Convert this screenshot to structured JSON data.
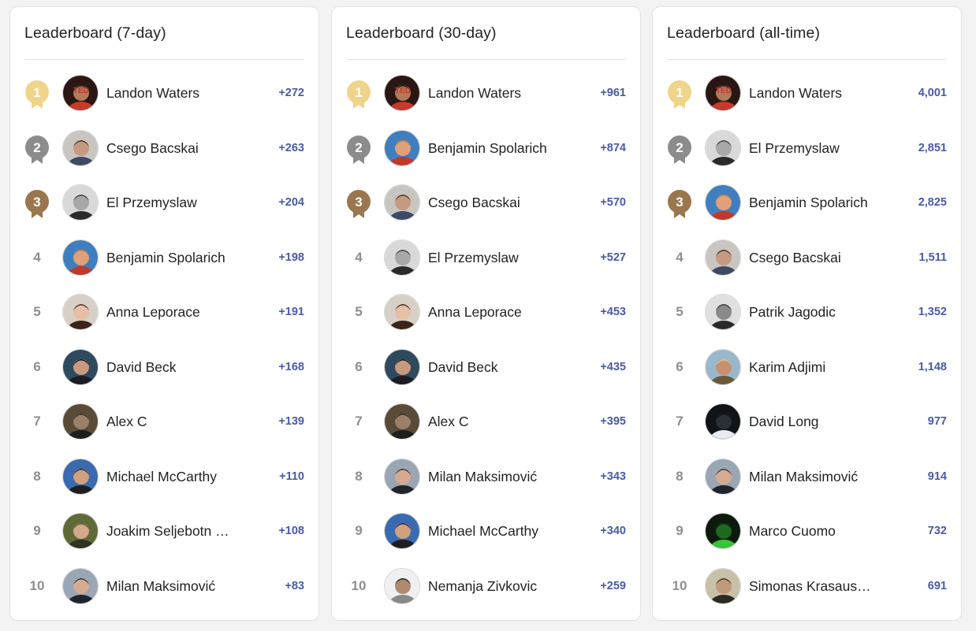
{
  "colors": {
    "score": "#4a5aa3",
    "rank_plain": "#8e8e8e",
    "medal_gold": "#f0d48a",
    "medal_silver": "#8c8c8c",
    "medal_bronze": "#9a774e"
  },
  "avatars": {
    "Landon Waters": {
      "bg": "#2a1612",
      "accent": "#c63a2a",
      "skin": "#b07a5e",
      "hair": "#1a1210",
      "text": "TED"
    },
    "Csego Bacskai": {
      "bg": "#c9c6c2",
      "accent": "#3d4a66",
      "skin": "#c59a80",
      "hair": "#3a2c22",
      "text": ""
    },
    "El Przemyslaw": {
      "bg": "#d9d9d9",
      "accent": "#2a2a2a",
      "skin": "#a8a8a8",
      "hair": "#3a3a3a",
      "text": ""
    },
    "Benjamin Spolarich": {
      "bg": "#3f7fbf",
      "accent": "#c0392b",
      "skin": "#e0a07a",
      "hair": "#c47a3a",
      "text": ""
    },
    "Anna Leporace": {
      "bg": "#d8cfc6",
      "accent": "#3a2418",
      "skin": "#e6bfa6",
      "hair": "#3a2418",
      "text": ""
    },
    "David Beck": {
      "bg": "#2e4a5e",
      "accent": "#1c1c24",
      "skin": "#c89a80",
      "hair": "#101018",
      "text": ""
    },
    "Alex C": {
      "bg": "#5a4a38",
      "accent": "#1e1e1e",
      "skin": "#9a8066",
      "hair": "#2a2420",
      "text": ""
    },
    "Michael McCarthy": {
      "bg": "#3a6ab0",
      "accent": "#1e1e22",
      "skin": "#d0a080",
      "hair": "#2a2220",
      "text": ""
    },
    "Joakim Seljebotn Lilleheim": {
      "bg": "#5e6a38",
      "accent": "#2c3422",
      "skin": "#d4a88a",
      "hair": "#6a4a2e",
      "text": ""
    },
    "Milan Maksimović": {
      "bg": "#9aa6b4",
      "accent": "#20242c",
      "skin": "#d4aa90",
      "hair": "#2a2a2a",
      "text": ""
    },
    "Nemanja Zivkovic": {
      "bg": "#f0f0f0",
      "accent": "#888888",
      "skin": "#b08a70",
      "hair": "#1a1a1a",
      "text": ""
    },
    "Patrik Jagodic": {
      "bg": "#e0e0e0",
      "accent": "#2a2a2a",
      "skin": "#8a8a8a",
      "hair": "#3a3a3a",
      "text": ""
    },
    "Karim Adjimi": {
      "bg": "#9ab8cc",
      "accent": "#6a5a3a",
      "skin": "#c89070",
      "hair": "#d8c8a0",
      "text": ""
    },
    "David Long": {
      "bg": "#101418",
      "accent": "#e6ecf2",
      "skin": "#2a3038",
      "hair": "#101418",
      "text": ""
    },
    "Marco Cuomo": {
      "bg": "#0c1a0c",
      "accent": "#3ac43a",
      "skin": "#1e6a1e",
      "hair": "#0c2a0c",
      "text": ""
    },
    "Simonas Krasauskas": {
      "bg": "#c8c0a8",
      "accent": "#2a2a22",
      "skin": "#c09a7a",
      "hair": "#3a2e22",
      "text": ""
    }
  },
  "boards": [
    {
      "title": "Leaderboard (7-day)",
      "entries": [
        {
          "rank": "1",
          "name": "Landon Waters",
          "score": "+272"
        },
        {
          "rank": "2",
          "name": "Csego Bacskai",
          "score": "+263"
        },
        {
          "rank": "3",
          "name": "El Przemyslaw",
          "score": "+204"
        },
        {
          "rank": "4",
          "name": "Benjamin Spolarich",
          "score": "+198"
        },
        {
          "rank": "5",
          "name": "Anna Leporace",
          "score": "+191"
        },
        {
          "rank": "6",
          "name": "David Beck",
          "score": "+168"
        },
        {
          "rank": "7",
          "name": "Alex C",
          "score": "+139"
        },
        {
          "rank": "8",
          "name": "Michael McCarthy",
          "score": "+110"
        },
        {
          "rank": "9",
          "name": "Joakim Seljebotn …",
          "avatar": "Joakim Seljebotn Lilleheim",
          "score": "+108"
        },
        {
          "rank": "10",
          "name": "Milan Maksimović",
          "score": "+83"
        }
      ]
    },
    {
      "title": "Leaderboard (30-day)",
      "entries": [
        {
          "rank": "1",
          "name": "Landon Waters",
          "score": "+961"
        },
        {
          "rank": "2",
          "name": "Benjamin Spolarich",
          "score": "+874"
        },
        {
          "rank": "3",
          "name": "Csego Bacskai",
          "score": "+570"
        },
        {
          "rank": "4",
          "name": "El Przemyslaw",
          "score": "+527"
        },
        {
          "rank": "5",
          "name": "Anna Leporace",
          "score": "+453"
        },
        {
          "rank": "6",
          "name": "David Beck",
          "score": "+435"
        },
        {
          "rank": "7",
          "name": "Alex C",
          "score": "+395"
        },
        {
          "rank": "8",
          "name": "Milan Maksimović",
          "score": "+343"
        },
        {
          "rank": "9",
          "name": "Michael McCarthy",
          "score": "+340"
        },
        {
          "rank": "10",
          "name": "Nemanja Zivkovic",
          "score": "+259"
        }
      ]
    },
    {
      "title": "Leaderboard (all-time)",
      "entries": [
        {
          "rank": "1",
          "name": "Landon Waters",
          "score": "4,001"
        },
        {
          "rank": "2",
          "name": "El Przemyslaw",
          "score": "2,851"
        },
        {
          "rank": "3",
          "name": "Benjamin Spolarich",
          "score": "2,825"
        },
        {
          "rank": "4",
          "name": "Csego Bacskai",
          "score": "1,511"
        },
        {
          "rank": "5",
          "name": "Patrik Jagodic",
          "score": "1,352"
        },
        {
          "rank": "6",
          "name": "Karim Adjimi",
          "score": "1,148"
        },
        {
          "rank": "7",
          "name": "David Long",
          "score": "977"
        },
        {
          "rank": "8",
          "name": "Milan Maksimović",
          "score": "914"
        },
        {
          "rank": "9",
          "name": "Marco Cuomo",
          "score": "732"
        },
        {
          "rank": "10",
          "name": "Simonas Krasausk…",
          "avatar": "Simonas Krasauskas",
          "score": "691"
        }
      ]
    }
  ]
}
